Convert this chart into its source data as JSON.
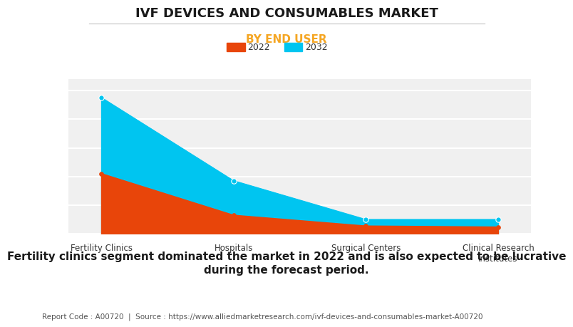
{
  "title": "IVF DEVICES AND CONSUMABLES MARKET",
  "subtitle": "BY END USER",
  "subtitle_color": "#f5a623",
  "categories": [
    "Fertility Clinics",
    "Hospitals",
    "Surgical Centers",
    "Clinical Research\nInstitutes"
  ],
  "values_2022": [
    0.42,
    0.13,
    0.055,
    0.048
  ],
  "values_2032": [
    0.95,
    0.37,
    0.1,
    0.1
  ],
  "color_2022": "#e8450a",
  "color_2032": "#00c5f0",
  "legend_2022": "2022",
  "legend_2032": "2032",
  "bg_color": "#ffffff",
  "plot_bg_color": "#f0f0f0",
  "grid_color": "#ffffff",
  "annotation_line1": "Fertility clinics segment dominated the market in 2022 and is also expected to be lucrative",
  "annotation_line2": "during the forecast period.",
  "footer": "Report Code : A00720  |  Source : https://www.alliedmarketresearch.com/ivf-devices-and-consumables-market-A00720",
  "ylim": [
    0,
    1.08
  ],
  "title_fontsize": 13,
  "subtitle_fontsize": 11,
  "legend_fontsize": 9,
  "annotation_fontsize": 11,
  "footer_fontsize": 7.5,
  "tick_fontsize": 8.5
}
